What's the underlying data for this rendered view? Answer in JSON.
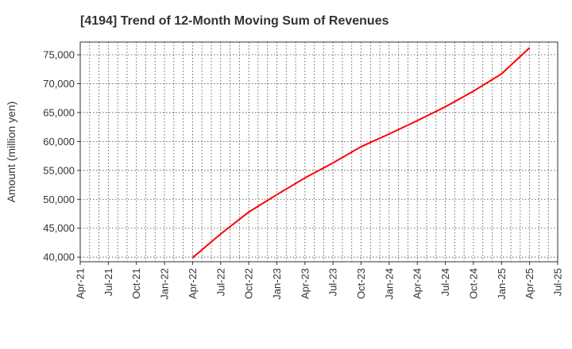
{
  "chart_data": {
    "type": "line",
    "title": "[4194]  Trend of 12-Month Moving Sum of Revenues",
    "xlabel": "",
    "ylabel": "Amount (million yen)",
    "x_ticks": [
      "Apr-21",
      "Jul-21",
      "Oct-21",
      "Jan-22",
      "Apr-22",
      "Jul-22",
      "Oct-22",
      "Jan-23",
      "Apr-23",
      "Jul-23",
      "Oct-23",
      "Jan-24",
      "Apr-24",
      "Jul-24",
      "Oct-24",
      "Jan-25",
      "Apr-25",
      "Jul-25"
    ],
    "y_ticks": [
      "40,000",
      "45,000",
      "50,000",
      "55,000",
      "60,000",
      "65,000",
      "70,000",
      "75,000"
    ],
    "ylim": [
      39200,
      77200
    ],
    "grid": true,
    "series": [
      {
        "color": "#ff0000",
        "x": [
          "2022-04",
          "2022-07",
          "2022-10",
          "2023-01",
          "2023-04",
          "2023-07",
          "2023-10",
          "2024-01",
          "2024-04",
          "2024-07",
          "2024-10",
          "2025-01",
          "2025-04"
        ],
        "values": [
          39900,
          44000,
          47800,
          50800,
          53700,
          56300,
          59100,
          61300,
          63600,
          66000,
          68700,
          71700,
          76200
        ]
      }
    ]
  }
}
